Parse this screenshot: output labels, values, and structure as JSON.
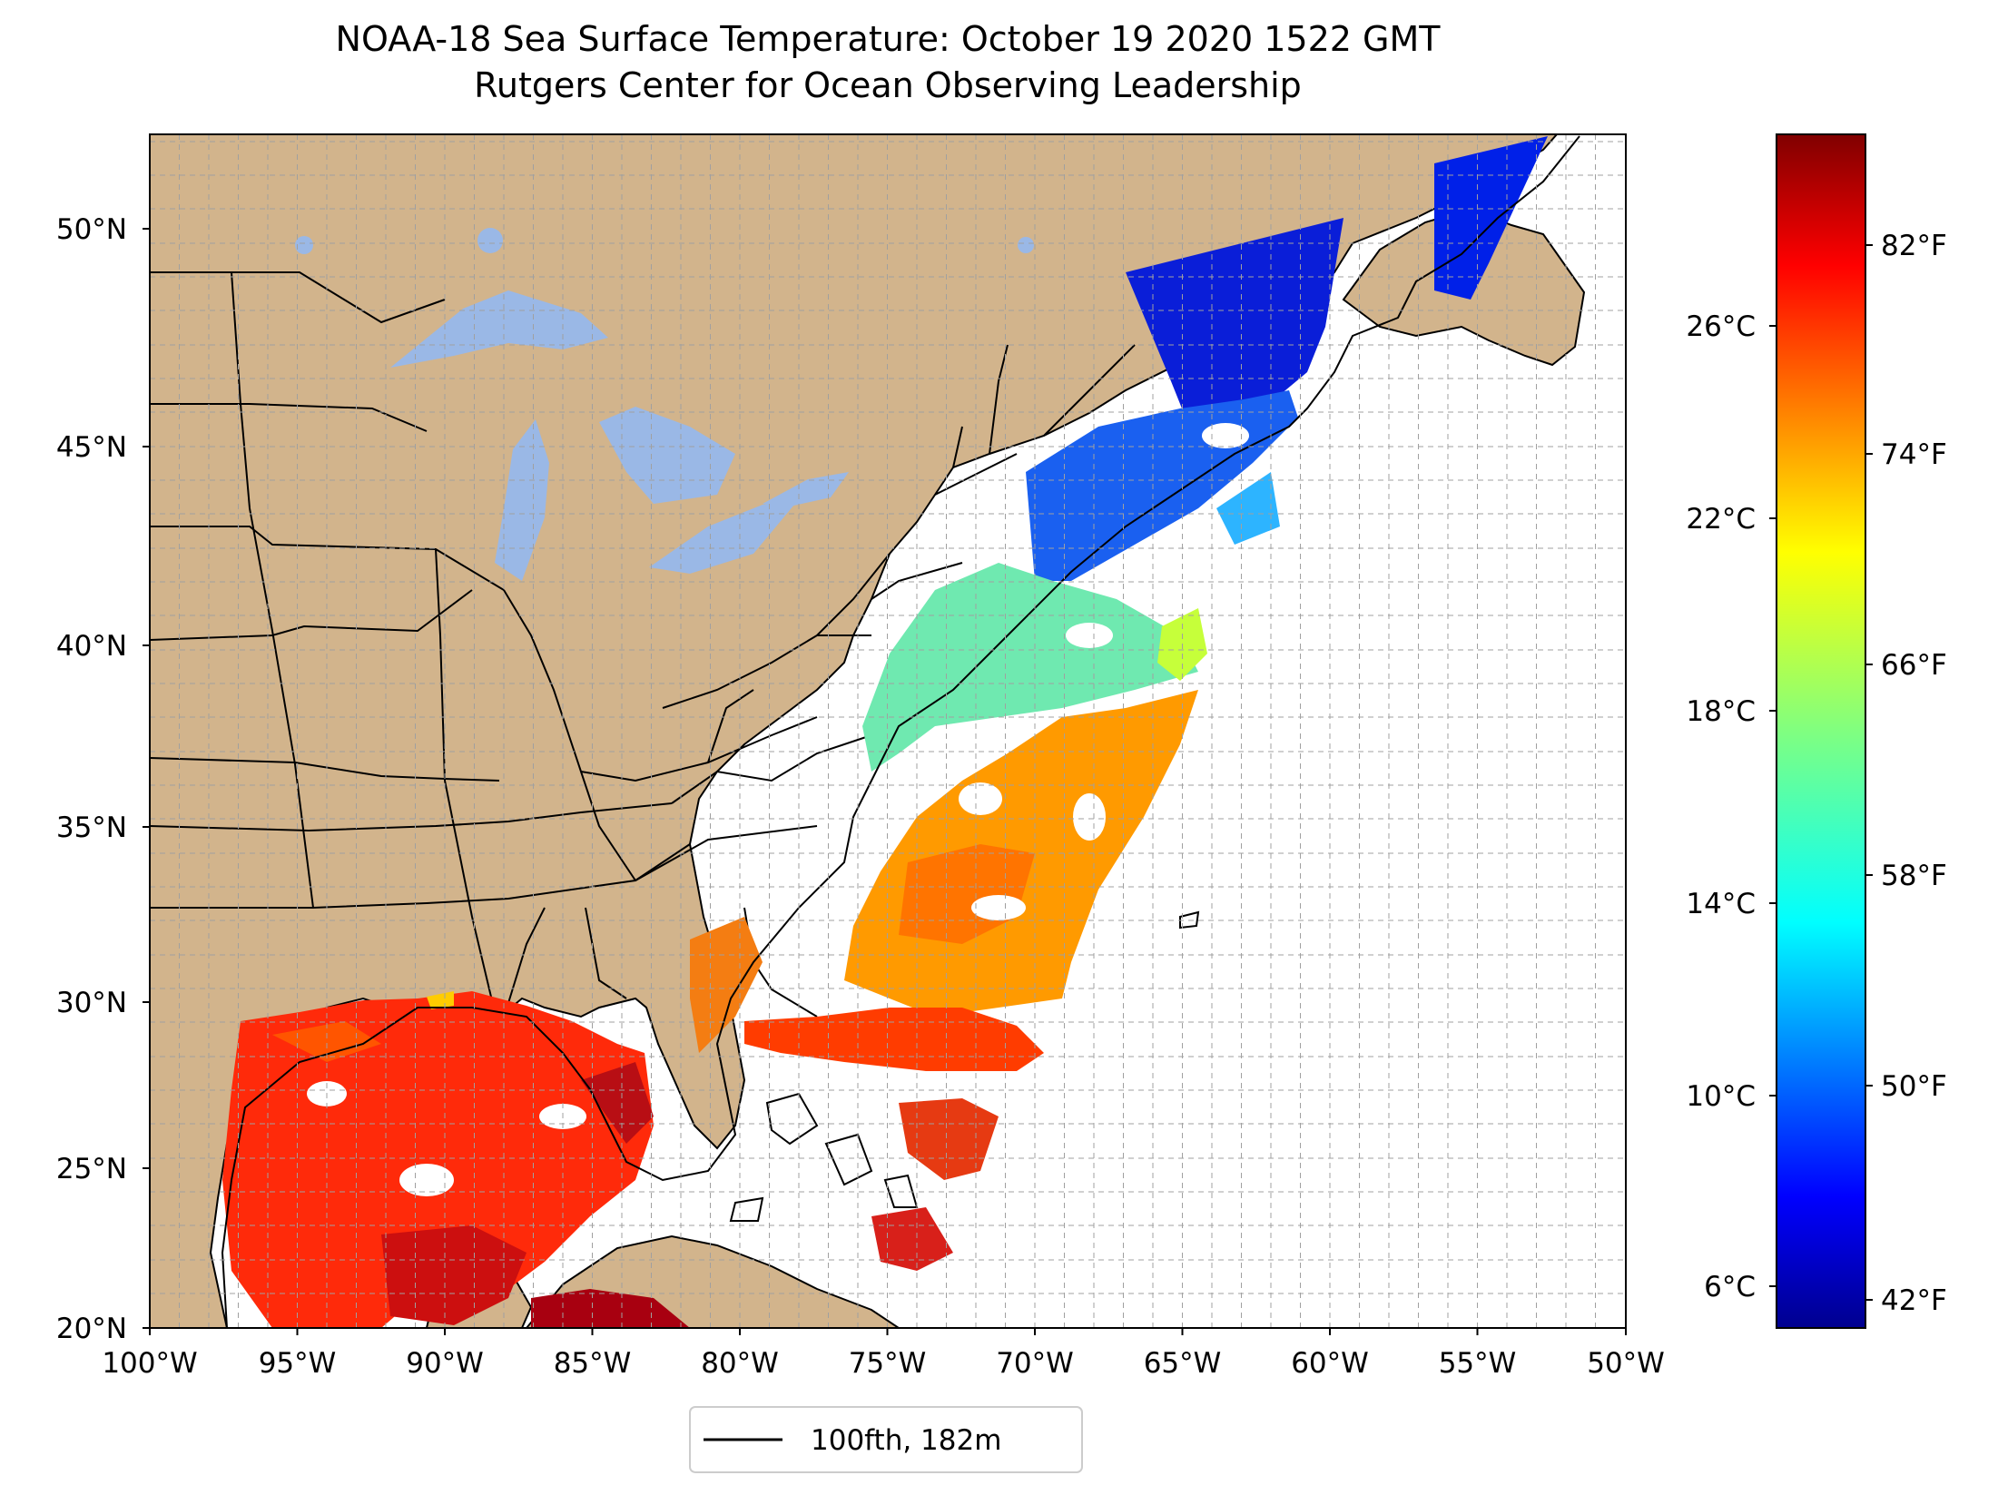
{
  "title": {
    "line1": "NOAA-18 Sea Surface Temperature: October 19 2020 1522 GMT",
    "line2": "Rutgers Center for Ocean Observing Leadership"
  },
  "map": {
    "lon_range": [
      -100,
      -50
    ],
    "lat_range": [
      20,
      52.2
    ],
    "grid": true,
    "land_color": "#d2b48c",
    "lake_color": "#9ab8e6",
    "ocean_color": "#ffffff"
  },
  "axes": {
    "lat_ticks": [
      "50°N",
      "45°N",
      "40°N",
      "35°N",
      "30°N",
      "25°N",
      "20°N"
    ],
    "lon_ticks": [
      "100°W",
      "95°W",
      "90°W",
      "85°W",
      "80°W",
      "75°W",
      "70°W",
      "65°W",
      "60°W",
      "55°W",
      "50°W"
    ]
  },
  "colorbar": {
    "colormap": "jet",
    "celsius_ticks": [
      "26°C",
      "22°C",
      "18°C",
      "14°C",
      "10°C",
      "6°C"
    ],
    "fahrenheit_ticks": [
      "82°F",
      "74°F",
      "66°F",
      "58°F",
      "50°F",
      "42°F"
    ]
  },
  "legend": {
    "entries": [
      {
        "label": "100fth, 182m",
        "color": "#000000"
      }
    ]
  }
}
